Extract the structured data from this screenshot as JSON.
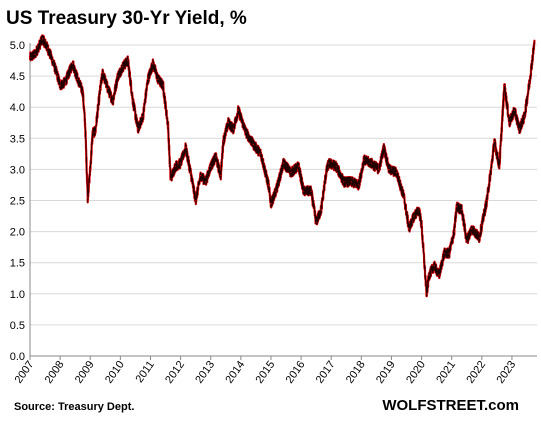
{
  "chart_data": {
    "type": "line",
    "title": "US Treasury 30-Yr Yield, %",
    "source": "Source: Treasury Dept.",
    "brand": "WOLFSTREET.com",
    "xlabel": "",
    "ylabel": "",
    "xlim": [
      "2007-01-01",
      "2023-10-31"
    ],
    "ylim": [
      0,
      5.0
    ],
    "y_ticks": [
      "0.0",
      "0.5",
      "1.0",
      "1.5",
      "2.0",
      "2.5",
      "3.0",
      "3.5",
      "4.0",
      "4.5",
      "5.0"
    ],
    "x_ticks": [
      "2007",
      "2008",
      "2009",
      "2010",
      "2011",
      "2012",
      "2013",
      "2014",
      "2015",
      "2016",
      "2017",
      "2018",
      "2019",
      "2020",
      "2021",
      "2022",
      "2023"
    ],
    "grid": "horizontal",
    "series_colors": [
      "#e10000",
      "#000000"
    ],
    "series": [
      {
        "points": [
          [
            "2007-01",
            4.8
          ],
          [
            "2007-03",
            4.85
          ],
          [
            "2007-06",
            5.1
          ],
          [
            "2007-08",
            4.95
          ],
          [
            "2007-10",
            4.75
          ],
          [
            "2007-12",
            4.5
          ],
          [
            "2008-01",
            4.35
          ],
          [
            "2008-03",
            4.4
          ],
          [
            "2008-06",
            4.7
          ],
          [
            "2008-08",
            4.45
          ],
          [
            "2008-10",
            4.25
          ],
          [
            "2008-11",
            3.7
          ],
          [
            "2008-12",
            2.55
          ],
          [
            "2009-01",
            3.0
          ],
          [
            "2009-02",
            3.6
          ],
          [
            "2009-03",
            3.6
          ],
          [
            "2009-05",
            4.3
          ],
          [
            "2009-06",
            4.55
          ],
          [
            "2009-08",
            4.3
          ],
          [
            "2009-10",
            4.1
          ],
          [
            "2009-12",
            4.5
          ],
          [
            "2010-02",
            4.65
          ],
          [
            "2010-04",
            4.75
          ],
          [
            "2010-06",
            4.1
          ],
          [
            "2010-08",
            3.65
          ],
          [
            "2010-10",
            3.85
          ],
          [
            "2010-12",
            4.45
          ],
          [
            "2011-02",
            4.7
          ],
          [
            "2011-04",
            4.45
          ],
          [
            "2011-06",
            4.35
          ],
          [
            "2011-08",
            3.7
          ],
          [
            "2011-09",
            2.85
          ],
          [
            "2011-11",
            3.05
          ],
          [
            "2012-01",
            3.1
          ],
          [
            "2012-03",
            3.35
          ],
          [
            "2012-05",
            2.95
          ],
          [
            "2012-07",
            2.5
          ],
          [
            "2012-09",
            2.9
          ],
          [
            "2012-11",
            2.8
          ],
          [
            "2013-01",
            3.05
          ],
          [
            "2013-03",
            3.2
          ],
          [
            "2013-05",
            2.9
          ],
          [
            "2013-06",
            3.45
          ],
          [
            "2013-08",
            3.75
          ],
          [
            "2013-10",
            3.65
          ],
          [
            "2013-12",
            3.95
          ],
          [
            "2014-03",
            3.6
          ],
          [
            "2014-06",
            3.4
          ],
          [
            "2014-09",
            3.25
          ],
          [
            "2014-12",
            2.75
          ],
          [
            "2015-01",
            2.45
          ],
          [
            "2015-03",
            2.65
          ],
          [
            "2015-06",
            3.1
          ],
          [
            "2015-09",
            2.95
          ],
          [
            "2015-12",
            3.05
          ],
          [
            "2016-02",
            2.65
          ],
          [
            "2016-05",
            2.65
          ],
          [
            "2016-07",
            2.15
          ],
          [
            "2016-09",
            2.35
          ],
          [
            "2016-11",
            2.95
          ],
          [
            "2016-12",
            3.1
          ],
          [
            "2017-03",
            3.05
          ],
          [
            "2017-06",
            2.8
          ],
          [
            "2017-09",
            2.8
          ],
          [
            "2017-12",
            2.75
          ],
          [
            "2018-02",
            3.15
          ],
          [
            "2018-05",
            3.1
          ],
          [
            "2018-08",
            3.0
          ],
          [
            "2018-10",
            3.35
          ],
          [
            "2018-12",
            3.0
          ],
          [
            "2019-03",
            2.95
          ],
          [
            "2019-06",
            2.55
          ],
          [
            "2019-08",
            2.05
          ],
          [
            "2019-10",
            2.25
          ],
          [
            "2019-12",
            2.35
          ],
          [
            "2020-01",
            2.1
          ],
          [
            "2020-03",
            1.0
          ],
          [
            "2020-04",
            1.3
          ],
          [
            "2020-06",
            1.45
          ],
          [
            "2020-08",
            1.3
          ],
          [
            "2020-10",
            1.65
          ],
          [
            "2020-12",
            1.65
          ],
          [
            "2021-02",
            2.0
          ],
          [
            "2021-03",
            2.4
          ],
          [
            "2021-05",
            2.35
          ],
          [
            "2021-07",
            1.85
          ],
          [
            "2021-09",
            2.05
          ],
          [
            "2021-12",
            1.9
          ],
          [
            "2022-01",
            2.1
          ],
          [
            "2022-03",
            2.5
          ],
          [
            "2022-05",
            3.1
          ],
          [
            "2022-06",
            3.45
          ],
          [
            "2022-08",
            3.05
          ],
          [
            "2022-10",
            4.35
          ],
          [
            "2022-12",
            3.75
          ],
          [
            "2023-02",
            3.95
          ],
          [
            "2023-04",
            3.65
          ],
          [
            "2023-06",
            3.85
          ],
          [
            "2023-08",
            4.4
          ],
          [
            "2023-10",
            5.05
          ]
        ]
      }
    ]
  }
}
